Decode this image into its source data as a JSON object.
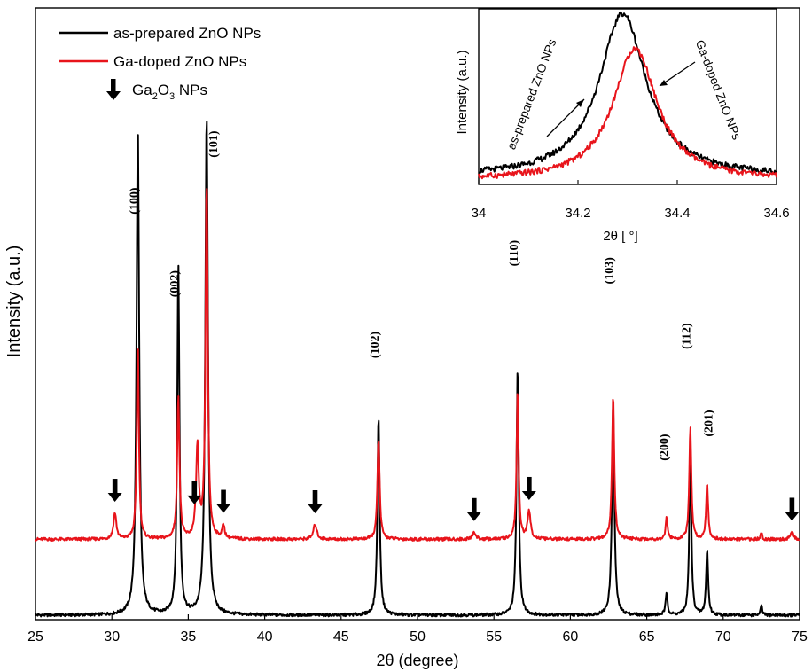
{
  "chart_data": [
    {
      "type": "line",
      "xlabel": "2θ (degree)",
      "ylabel": "Intensity (a.u.)",
      "xlim": [
        25,
        75
      ],
      "xticks": [
        25,
        30,
        35,
        40,
        45,
        50,
        55,
        60,
        65,
        70,
        75
      ],
      "ylim": [
        0,
        1
      ],
      "grid": false,
      "legend_position": "top-left",
      "legend": {
        "series1_label": "as-prepared ZnO NPs",
        "series2_label": "Ga-doped ZnO NPs",
        "marker_label_main": "Ga",
        "marker_label_sub1": "2",
        "marker_label_mid": "O",
        "marker_label_sub2": "3",
        "marker_label_tail": " NPs"
      },
      "colors": {
        "as_prepared": "#000000",
        "ga_doped": "#e8141b"
      },
      "series": [
        {
          "name": "as-prepared ZnO NPs",
          "baseline": 0.0,
          "peaks": [
            {
              "x": 31.7,
              "h": 1.12,
              "w": 0.13
            },
            {
              "x": 34.35,
              "h": 0.8,
              "w": 0.11
            },
            {
              "x": 36.2,
              "h": 1.15,
              "w": 0.13
            },
            {
              "x": 47.45,
              "h": 0.46,
              "w": 0.11
            },
            {
              "x": 56.55,
              "h": 0.57,
              "w": 0.11
            },
            {
              "x": 62.8,
              "h": 0.48,
              "w": 0.12
            },
            {
              "x": 66.3,
              "h": 0.05,
              "w": 0.1
            },
            {
              "x": 67.85,
              "h": 0.38,
              "w": 0.1
            },
            {
              "x": 68.95,
              "h": 0.15,
              "w": 0.1
            },
            {
              "x": 72.5,
              "h": 0.022,
              "w": 0.08
            }
          ]
        },
        {
          "name": "Ga-doped ZnO NPs",
          "baseline": 0.174,
          "peaks": [
            {
              "x": 30.2,
              "h": 0.06,
              "w": 0.14
            },
            {
              "x": 31.7,
              "h": 0.45,
              "w": 0.1
            },
            {
              "x": 34.35,
              "h": 0.33,
              "w": 0.11
            },
            {
              "x": 35.6,
              "h": 0.21,
              "w": 0.13
            },
            {
              "x": 36.2,
              "h": 0.82,
              "w": 0.11
            },
            {
              "x": 37.3,
              "h": 0.03,
              "w": 0.12
            },
            {
              "x": 43.3,
              "h": 0.035,
              "w": 0.16
            },
            {
              "x": 47.45,
              "h": 0.23,
              "w": 0.11
            },
            {
              "x": 53.7,
              "h": 0.017,
              "w": 0.15
            },
            {
              "x": 56.55,
              "h": 0.34,
              "w": 0.1
            },
            {
              "x": 57.3,
              "h": 0.062,
              "w": 0.15
            },
            {
              "x": 62.8,
              "h": 0.33,
              "w": 0.11
            },
            {
              "x": 66.3,
              "h": 0.05,
              "w": 0.1
            },
            {
              "x": 67.85,
              "h": 0.26,
              "w": 0.1
            },
            {
              "x": 68.95,
              "h": 0.13,
              "w": 0.1
            },
            {
              "x": 72.5,
              "h": 0.015,
              "w": 0.08
            },
            {
              "x": 74.5,
              "h": 0.018,
              "w": 0.13
            }
          ]
        }
      ],
      "peak_labels": [
        {
          "text": "(100)",
          "x": 31.7,
          "y": 0.95
        },
        {
          "text": "(002)",
          "x": 34.35,
          "y": 0.76
        },
        {
          "text": "(101)",
          "x": 36.9,
          "y": 1.08
        },
        {
          "text": "(102)",
          "x": 47.45,
          "y": 0.62
        },
        {
          "text": "(110)",
          "x": 56.55,
          "y": 0.83
        },
        {
          "text": "(103)",
          "x": 62.8,
          "y": 0.79
        },
        {
          "text": "(200)",
          "x": 66.4,
          "y": 0.385
        },
        {
          "text": "(112)",
          "x": 67.85,
          "y": 0.64
        },
        {
          "text": "(201)",
          "x": 69.3,
          "y": 0.44
        }
      ],
      "ga2o3_arrows": [
        30.2,
        35.4,
        37.3,
        43.3,
        53.7,
        57.3,
        74.5
      ]
    },
    {
      "type": "line",
      "title": "inset",
      "xlabel": "2θ [ °]",
      "ylabel": "Intensity  (a.u.)",
      "xlim": [
        34.0,
        34.6
      ],
      "xticks": [
        "34",
        "34.2",
        "34.4",
        "34.6"
      ],
      "xtick_values": [
        34.0,
        34.2,
        34.4,
        34.6
      ],
      "ylim": [
        0,
        1
      ],
      "series": [
        {
          "name": "as-prepared ZnO NPs",
          "center": 34.29,
          "peak": 1.0,
          "sigma": 0.075,
          "base": 0.02
        },
        {
          "name": "Ga-doped ZnO NPs",
          "center": 34.315,
          "peak": 0.79,
          "sigma": 0.07,
          "base": 0.0
        }
      ],
      "annotations": {
        "left": "as-prepared ZnO NPs",
        "right": "Ga-doped ZnO NPs"
      }
    }
  ]
}
